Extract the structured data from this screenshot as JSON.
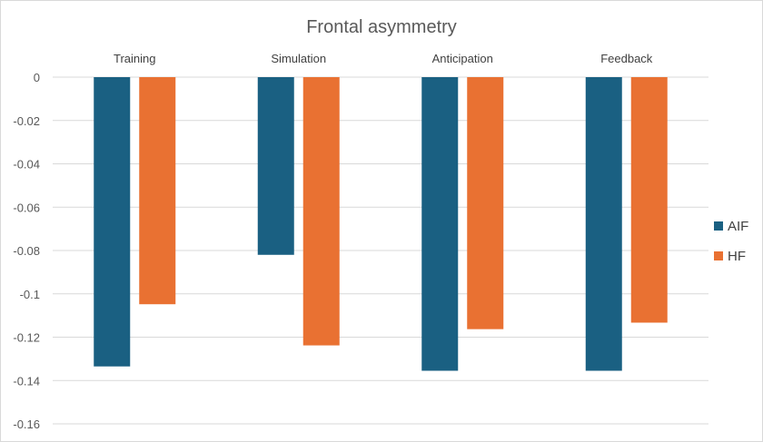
{
  "chart_data": {
    "type": "bar",
    "title": "Frontal asymmetry",
    "categories": [
      "Training",
      "Simulation",
      "Anticipation",
      "Feedback"
    ],
    "series": [
      {
        "name": "AIF",
        "color": "#1a6082",
        "values": [
          -0.1335,
          -0.082,
          -0.1355,
          -0.1355
        ]
      },
      {
        "name": "HF",
        "color": "#e97132",
        "values": [
          -0.1048,
          -0.1238,
          -0.1163,
          -0.1133
        ]
      }
    ],
    "ylim": [
      -0.16,
      0
    ],
    "yticks": [
      0,
      -0.02,
      -0.04,
      -0.06,
      -0.08,
      -0.1,
      -0.12,
      -0.14,
      -0.16
    ],
    "ytick_labels": [
      "0",
      "-0.02",
      "-0.04",
      "-0.06",
      "-0.08",
      "-0.1",
      "-0.12",
      "-0.14",
      "-0.16"
    ],
    "grid": true,
    "legend_position": "right",
    "category_label_position": "top"
  }
}
